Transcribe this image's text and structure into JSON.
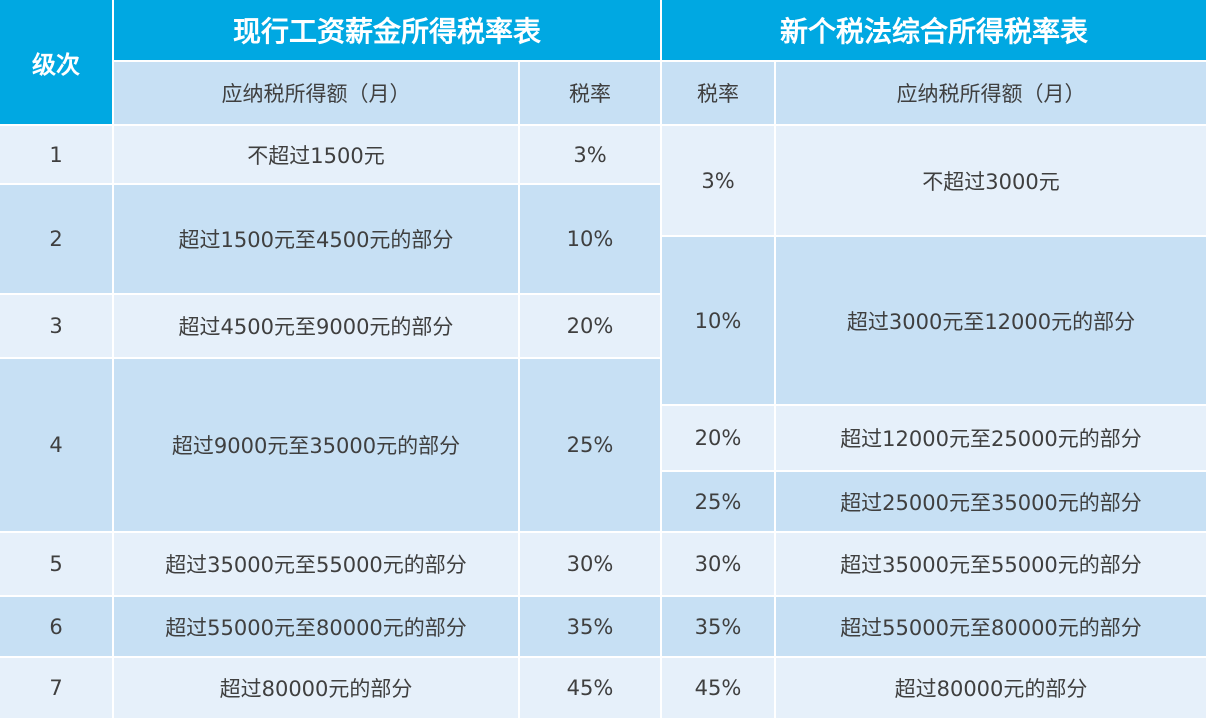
{
  "header": {
    "level_label": "级次",
    "current_title": "现行工资薪金所得税率表",
    "new_title": "新个税法综合所得税率表",
    "current_income_col": "应纳税所得额（月）",
    "current_rate_col": "税率",
    "new_rate_col": "税率",
    "new_income_col": "应纳税所得额（月）"
  },
  "levels": [
    "1",
    "2",
    "3",
    "4",
    "5",
    "6",
    "7"
  ],
  "current": [
    {
      "income": "不超过1500元",
      "rate": "3%"
    },
    {
      "income": "超过1500元至4500元的部分",
      "rate": "10%"
    },
    {
      "income": "超过4500元至9000元的部分",
      "rate": "20%"
    },
    {
      "income": "超过9000元至35000元的部分",
      "rate": "25%"
    },
    {
      "income": "超过35000元至55000元的部分",
      "rate": "30%"
    },
    {
      "income": "超过55000元至80000元的部分",
      "rate": "35%"
    },
    {
      "income": "超过80000元的部分",
      "rate": "45%"
    }
  ],
  "new": [
    {
      "rate": "3%",
      "income": "不超过3000元"
    },
    {
      "rate": "10%",
      "income": "超过3000元至12000元的部分"
    },
    {
      "rate": "20%",
      "income": "超过12000元至25000元的部分"
    },
    {
      "rate": "25%",
      "income": "超过25000元至35000元的部分"
    },
    {
      "rate": "30%",
      "income": "超过35000元至55000元的部分"
    },
    {
      "rate": "35%",
      "income": "超过55000元至80000元的部分"
    },
    {
      "rate": "45%",
      "income": "超过80000元的部分"
    }
  ],
  "colors": {
    "header_bg": "#00a8e2",
    "subheader_bg": "#c7e0f4",
    "row_light": "#e6f0fa",
    "row_dark": "#c7e0f4"
  }
}
